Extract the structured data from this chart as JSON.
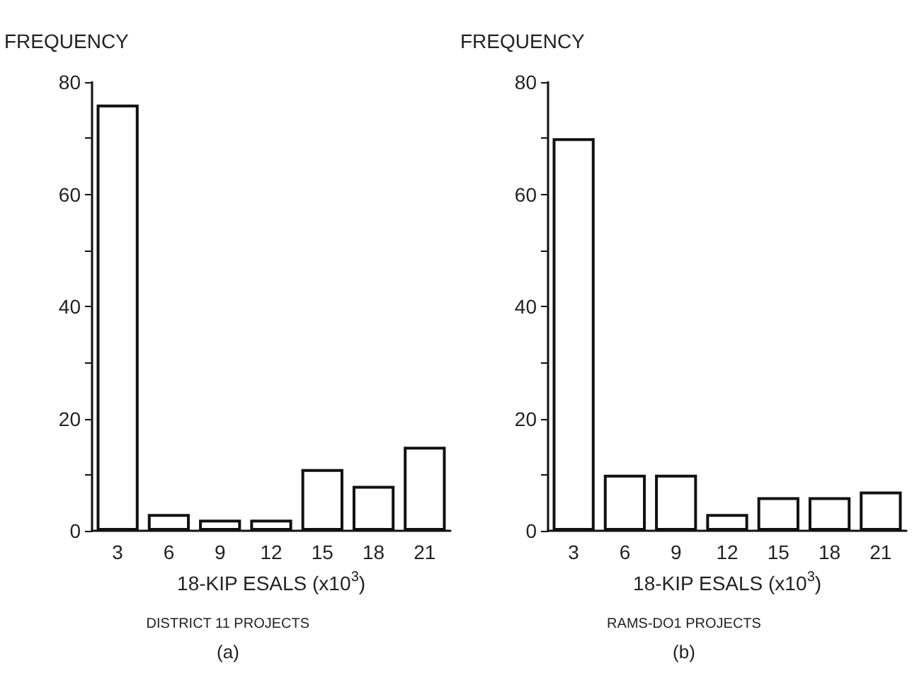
{
  "chart_data": [
    {
      "type": "bar",
      "ylabel": "FREQUENCY",
      "xlabel": "18-KIP ESALS (x10$^{3}$)",
      "annotations": [
        "DISTRICT 11 PROJECTS",
        "(a)"
      ],
      "categories": [
        "3",
        "6",
        "9",
        "12",
        "15",
        "18",
        "21"
      ],
      "values": [
        76,
        3,
        2,
        2,
        11,
        8,
        15
      ],
      "color": "#ffffff",
      "ylim": [
        0,
        80
      ],
      "yticks": [
        0,
        {
          "value": 10,
          "label": null
        },
        20,
        {
          "value": 30,
          "label": null
        },
        40,
        {
          "value": 50,
          "label": null
        },
        60,
        {
          "value": 70,
          "label": null
        },
        80
      ],
      "grid": false
    },
    {
      "type": "bar",
      "ylabel": "FREQUENCY",
      "xlabel": "18-KIP ESALS (x10$^{3}$)",
      "annotations": [
        "RAMS-DO1 PROJECTS",
        "(b)"
      ],
      "categories": [
        "3",
        "6",
        "9",
        "12",
        "15",
        "18",
        "21"
      ],
      "values": [
        70,
        10,
        10,
        3,
        6,
        6,
        7
      ],
      "color": "#ffffff",
      "ylim": [
        0,
        80
      ],
      "yticks": [
        0,
        {
          "value": 10,
          "label": null
        },
        20,
        {
          "value": 30,
          "label": null
        },
        40,
        {
          "value": 50,
          "label": null
        },
        60,
        {
          "value": 70,
          "label": null
        },
        80
      ],
      "grid": false
    }
  ]
}
